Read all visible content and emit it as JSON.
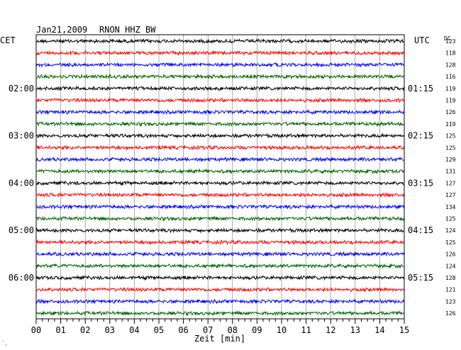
{
  "header": {
    "date": "Jan21,2009",
    "station": "RNON HHZ BW",
    "left_tz": "CET",
    "right_tz": "UTC",
    "dc_label": "DC"
  },
  "colors": {
    "trace_cycle": [
      "#000000",
      "#ff0000",
      "#0000ff",
      "#006400"
    ],
    "grid": "#000000",
    "background": "#ffffff"
  },
  "chart_data": {
    "type": "line",
    "title": "Jan21,2009   RNON HHZ BW",
    "xlabel": "Zeit [min]",
    "xlim": [
      0,
      15
    ],
    "x_ticks": [
      "00",
      "01",
      "02",
      "03",
      "04",
      "05",
      "06",
      "07",
      "08",
      "09",
      "10",
      "11",
      "12",
      "13",
      "14",
      "15"
    ],
    "trace_count": 24,
    "left_time_labels": [
      {
        "row": 4,
        "label": "02:00"
      },
      {
        "row": 8,
        "label": "03:00"
      },
      {
        "row": 12,
        "label": "04:00"
      },
      {
        "row": 16,
        "label": "05:00"
      },
      {
        "row": 20,
        "label": "06:00"
      }
    ],
    "right_time_labels": [
      {
        "row": 4,
        "label": "01:15"
      },
      {
        "row": 8,
        "label": "02:15"
      },
      {
        "row": 12,
        "label": "03:15"
      },
      {
        "row": 16,
        "label": "04:15"
      },
      {
        "row": 20,
        "label": "05:15"
      }
    ],
    "dc_values": [
      123,
      118,
      128,
      116,
      119,
      119,
      126,
      119,
      125,
      125,
      129,
      131,
      127,
      127,
      134,
      125,
      124,
      125,
      126,
      124,
      128,
      121,
      123,
      126
    ],
    "grid": true
  },
  "footer": {
    "corner_mark": "´¸"
  }
}
